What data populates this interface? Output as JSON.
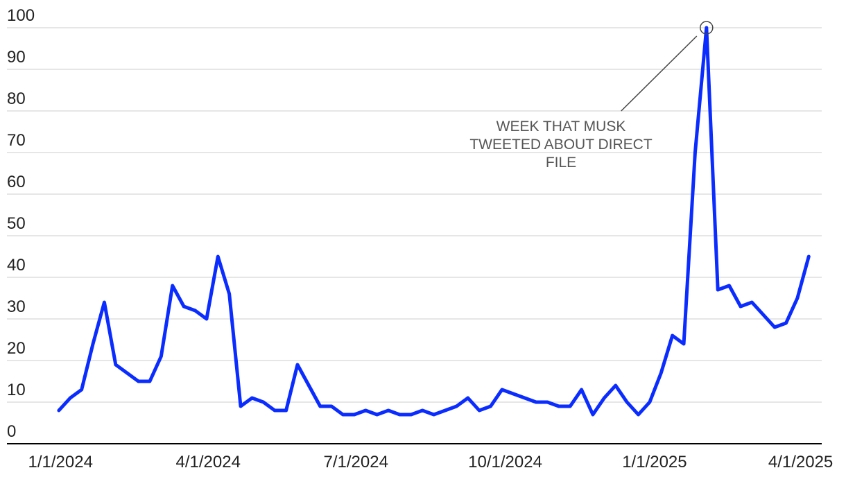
{
  "chart_data": {
    "type": "line",
    "x": [
      "2023-12-31",
      "2024-01-07",
      "2024-01-14",
      "2024-01-21",
      "2024-01-28",
      "2024-02-04",
      "2024-02-11",
      "2024-02-18",
      "2024-02-25",
      "2024-03-03",
      "2024-03-10",
      "2024-03-17",
      "2024-03-24",
      "2024-03-31",
      "2024-04-07",
      "2024-04-14",
      "2024-04-21",
      "2024-04-28",
      "2024-05-05",
      "2024-05-12",
      "2024-05-19",
      "2024-05-26",
      "2024-06-02",
      "2024-06-09",
      "2024-06-16",
      "2024-06-23",
      "2024-06-30",
      "2024-07-07",
      "2024-07-14",
      "2024-07-21",
      "2024-07-28",
      "2024-08-04",
      "2024-08-11",
      "2024-08-18",
      "2024-08-25",
      "2024-09-01",
      "2024-09-08",
      "2024-09-15",
      "2024-09-22",
      "2024-09-29",
      "2024-10-06",
      "2024-10-13",
      "2024-10-20",
      "2024-10-27",
      "2024-11-03",
      "2024-11-10",
      "2024-11-17",
      "2024-11-24",
      "2024-12-01",
      "2024-12-08",
      "2024-12-15",
      "2024-12-22",
      "2024-12-29",
      "2025-01-05",
      "2025-01-12",
      "2025-01-19",
      "2025-01-26",
      "2025-02-02",
      "2025-02-09",
      "2025-02-16",
      "2025-02-23",
      "2025-03-02",
      "2025-03-09",
      "2025-03-16",
      "2025-03-23",
      "2025-03-30",
      "2025-04-06"
    ],
    "series": [
      {
        "color": "#0a2cff",
        "values": [
          8,
          11,
          13,
          24,
          34,
          19,
          17,
          15,
          15,
          21,
          38,
          33,
          32,
          30,
          45,
          36,
          9,
          11,
          10,
          8,
          8,
          19,
          14,
          9,
          9,
          7,
          7,
          8,
          7,
          8,
          7,
          7,
          8,
          7,
          8,
          9,
          11,
          8,
          9,
          13,
          12,
          11,
          10,
          10,
          9,
          9,
          13,
          7,
          11,
          14,
          10,
          7,
          10,
          17,
          26,
          24,
          70,
          100,
          37,
          38,
          33,
          34,
          31,
          28,
          29,
          35,
          45
        ]
      }
    ],
    "xlim": [
      "2023-11-29",
      "2025-04-14"
    ],
    "xticks": [
      {
        "value": "2024-01-01",
        "label": "1/1/2024"
      },
      {
        "value": "2024-04-01",
        "label": "4/1/2024"
      },
      {
        "value": "2024-07-01",
        "label": "7/1/2024"
      },
      {
        "value": "2024-10-01",
        "label": "10/1/2024"
      },
      {
        "value": "2025-01-01",
        "label": "1/1/2025"
      },
      {
        "value": "2025-04-01",
        "label": "4/1/2025"
      }
    ],
    "ylim": [
      0,
      100
    ],
    "yticks": [
      0,
      10,
      20,
      30,
      40,
      50,
      60,
      70,
      80,
      90,
      100
    ],
    "grid": true,
    "annotation": {
      "x": "2025-02-02",
      "y": 100,
      "lines": [
        "WEEK THAT MUSK",
        "TWEETED ABOUT DIRECT",
        "FILE"
      ]
    }
  }
}
